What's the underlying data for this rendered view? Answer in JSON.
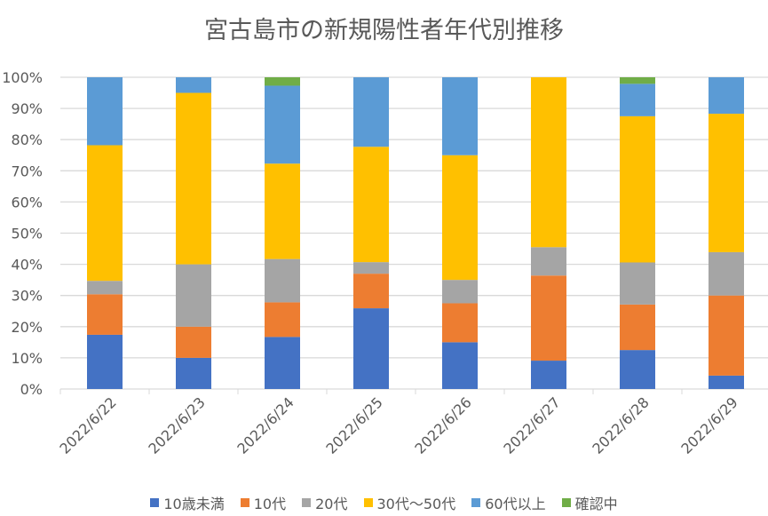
{
  "chart_data": {
    "type": "bar",
    "stacked": true,
    "title": "宮古島市の新規陽性者年代別推移",
    "xlabel": "",
    "ylabel": "",
    "ylim": [
      0,
      100
    ],
    "yticks": [
      "0%",
      "10%",
      "20%",
      "30%",
      "40%",
      "50%",
      "60%",
      "70%",
      "80%",
      "90%",
      "100%"
    ],
    "grid": true,
    "legend_position": "bottom",
    "categories": [
      "2022/6/22",
      "2022/6/23",
      "2022/6/24",
      "2022/6/25",
      "2022/6/26",
      "2022/6/27",
      "2022/6/28",
      "2022/6/29"
    ],
    "series": [
      {
        "name": "10歳未満",
        "color": "#4472C4",
        "values": [
          17.4,
          10,
          16.7,
          25.9,
          15,
          9.1,
          12.5,
          4.3
        ]
      },
      {
        "name": "10代",
        "color": "#ED7D31",
        "values": [
          13.0,
          10,
          11.1,
          11.1,
          12.5,
          27.3,
          14.6,
          25.7
        ]
      },
      {
        "name": "20代",
        "color": "#A5A5A5",
        "values": [
          4.3,
          20,
          13.9,
          3.7,
          7.5,
          9.1,
          13.5,
          13.9
        ]
      },
      {
        "name": "30代～50代",
        "color": "#FFC000",
        "values": [
          43.5,
          55,
          30.6,
          37,
          40,
          54.5,
          46.9,
          44.4
        ]
      },
      {
        "name": "60代以上",
        "color": "#5B9BD5",
        "values": [
          21.8,
          5,
          25,
          22.3,
          25,
          0,
          10.4,
          11.7
        ]
      },
      {
        "name": "確認中",
        "color": "#70AD47",
        "values": [
          0,
          0,
          2.7,
          0,
          0,
          0,
          2.1,
          0
        ]
      }
    ]
  }
}
